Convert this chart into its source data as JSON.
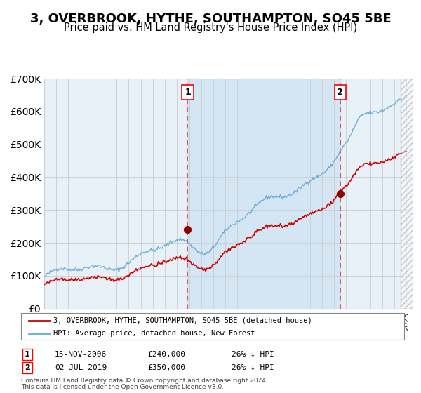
{
  "title": "3, OVERBROOK, HYTHE, SOUTHAMPTON, SO45 5BE",
  "subtitle": "Price paid vs. HM Land Registry's House Price Index (HPI)",
  "title_fontsize": 13,
  "subtitle_fontsize": 10.5,
  "background_color": "#ffffff",
  "hpi_color": "#6aaed6",
  "price_color": "#cc0000",
  "marker_color": "#8b0000",
  "vline_color": "#ee3333",
  "ylim": [
    0,
    700000
  ],
  "yticks": [
    0,
    100000,
    200000,
    300000,
    400000,
    500000,
    600000,
    700000
  ],
  "year_start": 1995,
  "year_end": 2025,
  "purchase1_date": 2006.88,
  "purchase1_price": 240000,
  "purchase1_label": "1",
  "purchase2_date": 2019.5,
  "purchase2_price": 350000,
  "purchase2_label": "2",
  "legend_label_red": "3, OVERBROOK, HYTHE, SOUTHAMPTON, SO45 5BE (detached house)",
  "legend_label_blue": "HPI: Average price, detached house, New Forest",
  "footer1": "Contains HM Land Registry data © Crown copyright and database right 2024.",
  "footer2": "This data is licensed under the Open Government Licence v3.0.",
  "table_row1": [
    "1",
    "15-NOV-2006",
    "£240,000",
    "26% ↓ HPI"
  ],
  "table_row2": [
    "2",
    "02-JUL-2019",
    "£350,000",
    "26% ↓ HPI"
  ],
  "grid_color": "#cccccc"
}
